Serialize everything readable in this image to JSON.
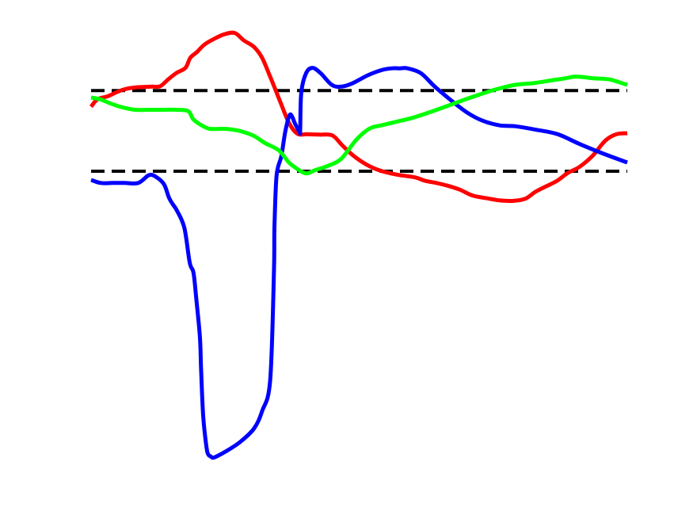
{
  "chart_data": {
    "type": "line",
    "title": "",
    "xlabel": "",
    "ylabel": "",
    "xlim": [
      0,
      1
    ],
    "ylim": [
      0,
      1
    ],
    "grid": false,
    "legend": "none",
    "series": [
      {
        "name": "red",
        "color": "#ff0000",
        "x": [
          0.0,
          0.012,
          0.031,
          0.049,
          0.066,
          0.09,
          0.113,
          0.129,
          0.145,
          0.16,
          0.176,
          0.185,
          0.197,
          0.211,
          0.227,
          0.248,
          0.268,
          0.285,
          0.304,
          0.319,
          0.333,
          0.351,
          0.369,
          0.385,
          0.403,
          0.425,
          0.45,
          0.468,
          0.49,
          0.514,
          0.54,
          0.571,
          0.604,
          0.623,
          0.644,
          0.664,
          0.687,
          0.712,
          0.738,
          0.763,
          0.788,
          0.81,
          0.829,
          0.848,
          0.869,
          0.889,
          0.911,
          0.935,
          0.959,
          0.98,
          1.0
        ],
        "y": [
          0.828,
          0.845,
          0.852,
          0.862,
          0.869,
          0.873,
          0.874,
          0.875,
          0.892,
          0.906,
          0.917,
          0.94,
          0.953,
          0.97,
          0.982,
          0.994,
          0.997,
          0.98,
          0.965,
          0.94,
          0.9,
          0.845,
          0.791,
          0.766,
          0.765,
          0.764,
          0.762,
          0.74,
          0.715,
          0.695,
          0.681,
          0.672,
          0.666,
          0.658,
          0.653,
          0.647,
          0.638,
          0.624,
          0.618,
          0.613,
          0.612,
          0.617,
          0.633,
          0.645,
          0.658,
          0.676,
          0.69,
          0.715,
          0.75,
          0.765,
          0.767
        ]
      },
      {
        "name": "blue",
        "color": "#0000ff",
        "x": [
          0.0,
          0.018,
          0.04,
          0.062,
          0.088,
          0.108,
          0.121,
          0.136,
          0.145,
          0.152,
          0.16,
          0.174,
          0.184,
          0.191,
          0.196,
          0.203,
          0.205,
          0.207,
          0.209,
          0.212,
          0.217,
          0.224,
          0.228,
          0.236,
          0.255,
          0.279,
          0.304,
          0.319,
          0.334,
          0.341,
          0.342,
          0.346,
          0.355,
          0.362,
          0.37,
          0.375,
          0.38,
          0.389,
          0.39,
          0.392,
          0.401,
          0.413,
          0.428,
          0.449,
          0.467,
          0.488,
          0.516,
          0.542,
          0.561,
          0.576,
          0.59,
          0.615,
          0.641,
          0.672,
          0.702,
          0.73,
          0.763,
          0.792,
          0.831,
          0.87,
          0.912,
          0.956,
          1.0
        ],
        "y": [
          0.66,
          0.653,
          0.653,
          0.653,
          0.653,
          0.671,
          0.667,
          0.65,
          0.62,
          0.605,
          0.59,
          0.55,
          0.47,
          0.447,
          0.39,
          0.3,
          0.23,
          0.17,
          0.12,
          0.08,
          0.035,
          0.025,
          0.023,
          0.027,
          0.04,
          0.06,
          0.09,
          0.13,
          0.2,
          0.45,
          0.55,
          0.67,
          0.715,
          0.77,
          0.808,
          0.805,
          0.79,
          0.77,
          0.775,
          0.86,
          0.905,
          0.917,
          0.905,
          0.878,
          0.874,
          0.882,
          0.9,
          0.912,
          0.916,
          0.916,
          0.916,
          0.905,
          0.874,
          0.842,
          0.814,
          0.796,
          0.785,
          0.783,
          0.775,
          0.765,
          0.742,
          0.72,
          0.7
        ]
      },
      {
        "name": "green",
        "color": "#00ff00",
        "x": [
          0.0,
          0.017,
          0.035,
          0.057,
          0.082,
          0.11,
          0.136,
          0.16,
          0.181,
          0.19,
          0.2,
          0.211,
          0.222,
          0.237,
          0.252,
          0.275,
          0.302,
          0.324,
          0.35,
          0.369,
          0.385,
          0.401,
          0.417,
          0.441,
          0.466,
          0.493,
          0.51,
          0.523,
          0.54,
          0.568,
          0.601,
          0.638,
          0.676,
          0.715,
          0.753,
          0.79,
          0.825,
          0.861,
          0.879,
          0.892,
          0.902,
          0.918,
          0.937,
          0.955,
          0.969,
          0.985,
          1.0
        ],
        "y": [
          0.849,
          0.845,
          0.836,
          0.827,
          0.821,
          0.821,
          0.821,
          0.821,
          0.818,
          0.8,
          0.79,
          0.782,
          0.777,
          0.777,
          0.777,
          0.773,
          0.762,
          0.745,
          0.728,
          0.7,
          0.685,
          0.675,
          0.682,
          0.692,
          0.708,
          0.75,
          0.77,
          0.78,
          0.785,
          0.793,
          0.803,
          0.818,
          0.835,
          0.852,
          0.867,
          0.878,
          0.882,
          0.889,
          0.892,
          0.895,
          0.897,
          0.896,
          0.893,
          0.892,
          0.89,
          0.884,
          0.878
        ]
      }
    ],
    "reference_lines": [
      {
        "name": "upper-dashed",
        "y": 0.865,
        "color": "#000000",
        "style": "dashed"
      },
      {
        "name": "lower-dashed",
        "y": 0.68,
        "color": "#000000",
        "style": "dashed"
      }
    ]
  }
}
